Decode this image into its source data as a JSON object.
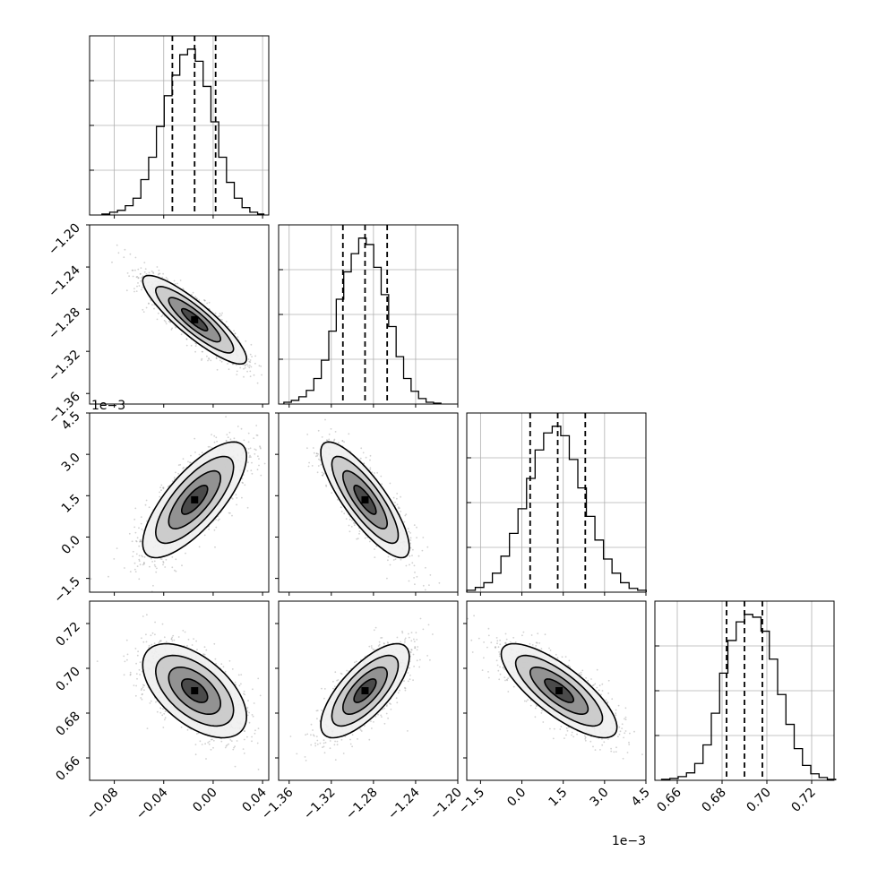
{
  "chart_data": {
    "type": "corner",
    "parameters": [
      {
        "name": "",
        "ticks": [
          "−0.08",
          "−0.04",
          "0.00",
          "0.04"
        ],
        "tick_values": [
          -0.08,
          -0.04,
          0.0,
          0.04
        ],
        "range": [
          -0.1,
          0.045
        ],
        "quantiles": [
          -0.033,
          -0.015,
          0.002
        ],
        "median": -0.015,
        "scale_label": ""
      },
      {
        "name": "",
        "ticks": [
          "−1.36",
          "−1.32",
          "−1.28",
          "−1.24",
          "−1.20"
        ],
        "tick_values": [
          -1.36,
          -1.32,
          -1.28,
          -1.24,
          -1.2
        ],
        "range": [
          -1.37,
          -1.2
        ],
        "quantiles": [
          -1.309,
          -1.288,
          -1.267
        ],
        "median": -1.288,
        "scale_label": ""
      },
      {
        "name": "",
        "ticks": [
          "−1.5",
          "0.0",
          "1.5",
          "3.0",
          "4.5"
        ],
        "tick_values": [
          -1.5,
          0.0,
          1.5,
          3.0,
          4.5
        ],
        "range": [
          -2.0,
          4.5
        ],
        "quantiles": [
          0.3,
          1.3,
          2.3
        ],
        "median": 1.3,
        "scale_label": "1e−3"
      },
      {
        "name": "",
        "ticks": [
          "0.66",
          "0.68",
          "0.70",
          "0.72"
        ],
        "tick_values": [
          0.66,
          0.68,
          0.7,
          0.72
        ],
        "range": [
          0.65,
          0.73
        ],
        "quantiles": [
          0.682,
          0.69,
          0.698
        ],
        "median": 0.69,
        "scale_label": ""
      }
    ],
    "histograms": [
      {
        "param": 0,
        "bin_edges": [
          -0.09,
          -0.0837,
          -0.0774,
          -0.0711,
          -0.0648,
          -0.0585,
          -0.0522,
          -0.0459,
          -0.0396,
          -0.0333,
          -0.027,
          -0.0207,
          -0.0144,
          -0.0081,
          -0.0018,
          0.0045,
          0.0108,
          0.0171,
          0.0234,
          0.0297,
          0.036,
          0.041
        ],
        "counts": [
          1,
          3,
          5,
          10,
          18,
          38,
          62,
          95,
          128,
          150,
          172,
          178,
          165,
          138,
          100,
          62,
          35,
          18,
          8,
          3,
          1
        ]
      },
      {
        "param": 1,
        "bin_edges": [
          -1.365,
          -1.3579,
          -1.3508,
          -1.3437,
          -1.3366,
          -1.3295,
          -1.3224,
          -1.3153,
          -1.3082,
          -1.3011,
          -1.294,
          -1.2869,
          -1.2798,
          -1.2727,
          -1.2656,
          -1.2585,
          -1.2514,
          -1.2443,
          -1.2372,
          -1.2301,
          -1.223,
          -1.216
        ],
        "counts": [
          2,
          4,
          8,
          15,
          28,
          48,
          80,
          115,
          145,
          165,
          182,
          175,
          150,
          120,
          85,
          52,
          28,
          14,
          6,
          2,
          1
        ]
      },
      {
        "param": 2,
        "bin_edges": [
          -2.0,
          -1.69,
          -1.38,
          -1.07,
          -0.76,
          -0.45,
          -0.14,
          0.17,
          0.48,
          0.79,
          1.1,
          1.41,
          1.72,
          2.03,
          2.34,
          2.65,
          2.96,
          3.27,
          3.58,
          3.89,
          4.2,
          4.51
        ],
        "counts": [
          2,
          5,
          10,
          20,
          38,
          62,
          88,
          120,
          150,
          168,
          175,
          165,
          140,
          110,
          80,
          55,
          35,
          20,
          10,
          4,
          2
        ]
      },
      {
        "param": 3,
        "bin_edges": [
          0.653,
          0.6567,
          0.6604,
          0.6641,
          0.6678,
          0.6715,
          0.6752,
          0.6789,
          0.6826,
          0.6863,
          0.69,
          0.6937,
          0.6974,
          0.7011,
          0.7048,
          0.7085,
          0.7122,
          0.7159,
          0.7196,
          0.7233,
          0.727,
          0.7307
        ],
        "counts": [
          1,
          2,
          4,
          8,
          18,
          38,
          72,
          115,
          150,
          170,
          178,
          175,
          160,
          130,
          92,
          60,
          34,
          16,
          7,
          3,
          1
        ]
      }
    ],
    "pairs": [
      {
        "x_param": 0,
        "y_param": 1,
        "mean": [
          -0.015,
          -1.29
        ],
        "sd": [
          0.021,
          0.021
        ],
        "corr": -0.88
      },
      {
        "x_param": 0,
        "y_param": 2,
        "mean": [
          -0.015,
          1.35
        ],
        "sd": [
          0.021,
          1.05
        ],
        "corr": 0.75
      },
      {
        "x_param": 1,
        "y_param": 2,
        "mean": [
          -1.288,
          1.35
        ],
        "sd": [
          0.021,
          1.05
        ],
        "corr": -0.82
      },
      {
        "x_param": 0,
        "y_param": 3,
        "mean": [
          -0.015,
          0.69
        ],
        "sd": [
          0.021,
          0.0105
        ],
        "corr": -0.55
      },
      {
        "x_param": 1,
        "y_param": 3,
        "mean": [
          -1.288,
          0.69
        ],
        "sd": [
          0.021,
          0.0105
        ],
        "corr": 0.72
      },
      {
        "x_param": 2,
        "y_param": 3,
        "mean": [
          1.35,
          0.69
        ],
        "sd": [
          1.05,
          0.0105
        ],
        "corr": -0.78
      }
    ],
    "contour_levels_sigma": [
      0.5,
      1.0,
      1.5,
      2.0
    ],
    "grid": true,
    "legend": "none",
    "xlabel": "",
    "ylabel": "",
    "title": ""
  }
}
